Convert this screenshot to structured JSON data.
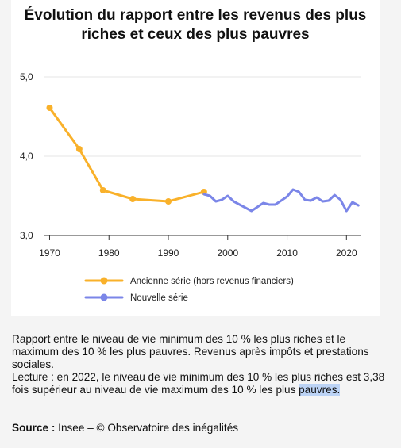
{
  "chart_data": {
    "type": "line",
    "title": "Évolution du rapport entre les revenus des plus riches et ceux des plus pauvres",
    "xlabel": "",
    "ylabel": "",
    "xlim": [
      1969,
      2022.5
    ],
    "ylim": [
      3.0,
      5.0
    ],
    "x_ticks": [
      1970,
      1980,
      1990,
      2000,
      2010,
      2020
    ],
    "y_ticks": [
      "3,0",
      "4,0",
      "5,0"
    ],
    "y_tick_values": [
      3.0,
      4.0,
      5.0
    ],
    "grid": "horizontal",
    "legend_position": "bottom-left",
    "series": [
      {
        "name": "Ancienne série (hors revenus financiers)",
        "color": "#f9b12a",
        "marker": "circle",
        "x": [
          1970,
          1975,
          1979,
          1984,
          1990,
          1996
        ],
        "y": [
          4.61,
          4.09,
          3.57,
          3.46,
          3.43,
          3.55
        ]
      },
      {
        "name": "Nouvelle série",
        "color": "#7b86e8",
        "marker": "none",
        "x": [
          1996,
          1997,
          1998,
          1999,
          2000,
          2001,
          2002,
          2003,
          2004,
          2005,
          2006,
          2007,
          2008,
          2009,
          2010,
          2011,
          2012,
          2013,
          2014,
          2015,
          2016,
          2017,
          2018,
          2019,
          2020,
          2021,
          2022
        ],
        "y": [
          3.52,
          3.5,
          3.43,
          3.45,
          3.5,
          3.43,
          3.39,
          3.35,
          3.31,
          3.36,
          3.41,
          3.39,
          3.39,
          3.44,
          3.49,
          3.58,
          3.55,
          3.45,
          3.44,
          3.48,
          3.43,
          3.44,
          3.51,
          3.45,
          3.31,
          3.42,
          3.38
        ]
      }
    ]
  },
  "notes": {
    "line1": "Rapport entre le niveau de vie minimum des 10 % les plus riches et le maximum des 10 % les plus pauvres. Revenus après impôts et prestations sociales.",
    "line2_main": "Lecture : en 2022, le niveau de vie minimum des 10 % les plus riches est 3,38 fois supérieur au niveau de vie maximum des 10 % les plus ",
    "line2_highlight": "pauvres."
  },
  "source": {
    "label": "Source :",
    "text": " Insee – © Observatoire des inégalités"
  }
}
